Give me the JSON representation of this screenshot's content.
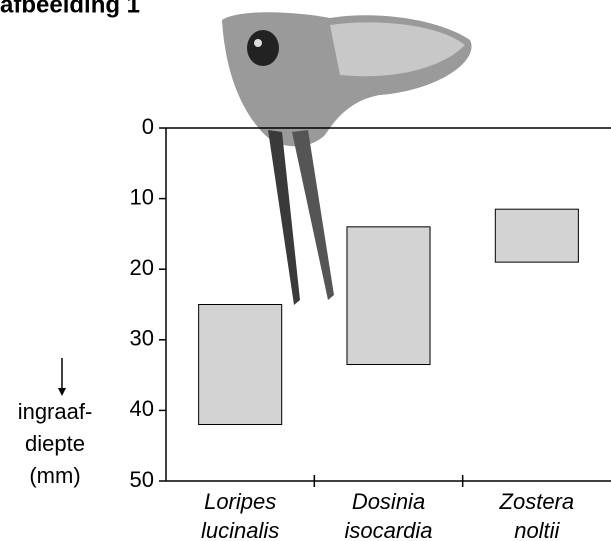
{
  "chart_data": {
    "type": "floating-bar",
    "title": "afbeelding 1",
    "categories": [
      "Loripes lucinalis",
      "Dosinia isocardia",
      "Zostera noltii"
    ],
    "values": [
      [
        25,
        42
      ],
      [
        14,
        33.5
      ],
      [
        11.5,
        19
      ]
    ],
    "color": "#d3d3d3",
    "y_label": [
      "ingraaf-",
      "diepte",
      "(mm)"
    ],
    "ylim": [
      0,
      50
    ],
    "yticks": [
      0,
      10,
      20,
      30,
      40,
      50
    ],
    "y_inverted": true
  }
}
